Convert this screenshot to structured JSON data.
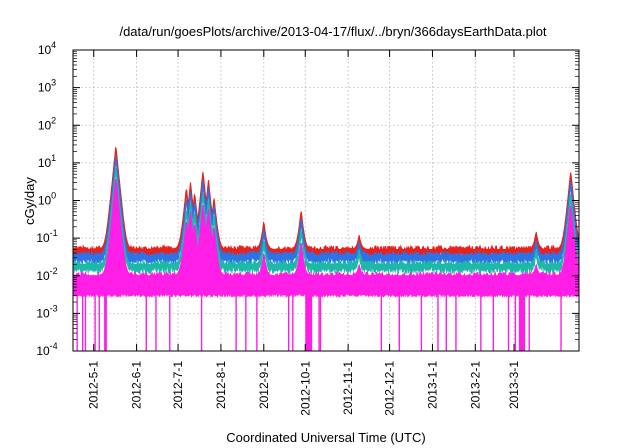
{
  "chart_data": {
    "type": "line",
    "title": "/data/run/goesPlots/archive/2013-04-17/flux/../bryn/366daysEarthData.plot",
    "xlabel": "Coordinated Universal Time (UTC)",
    "ylabel": "cGy/day",
    "yscale": "log",
    "ylim": [
      0.0001,
      10000
    ],
    "xlim": [
      "2012-04-16",
      "2013-04-17"
    ],
    "grid": true,
    "y_ticks": [
      {
        "base": "10",
        "exp": "-4",
        "value": 0.0001
      },
      {
        "base": "10",
        "exp": "-3",
        "value": 0.001
      },
      {
        "base": "10",
        "exp": "-2",
        "value": 0.01
      },
      {
        "base": "10",
        "exp": "-1",
        "value": 0.1
      },
      {
        "base": "10",
        "exp": "0",
        "value": 1
      },
      {
        "base": "10",
        "exp": "1",
        "value": 10
      },
      {
        "base": "10",
        "exp": "2",
        "value": 100
      },
      {
        "base": "10",
        "exp": "3",
        "value": 1000
      },
      {
        "base": "10",
        "exp": "4",
        "value": 10000
      }
    ],
    "x_ticks": [
      {
        "label": "2012-5-1",
        "date": "2012-05-01"
      },
      {
        "label": "2012-6-1",
        "date": "2012-06-01"
      },
      {
        "label": "2012-7-1",
        "date": "2012-07-01"
      },
      {
        "label": "2012-8-1",
        "date": "2012-08-01"
      },
      {
        "label": "2012-9-1",
        "date": "2012-09-01"
      },
      {
        "label": "2012-10-1",
        "date": "2012-10-01"
      },
      {
        "label": "2012-11-1",
        "date": "2012-11-01"
      },
      {
        "label": "2012-12-1",
        "date": "2012-12-01"
      },
      {
        "label": "2013-1-1",
        "date": "2013-01-01"
      },
      {
        "label": "2013-2-1",
        "date": "2013-02-01"
      },
      {
        "label": "2013-3-1",
        "date": "2013-03-01"
      }
    ],
    "series": [
      {
        "color": "#e8221b",
        "baseline": 0.05,
        "peaks": [
          {
            "date": "2012-05-17",
            "value": 28
          },
          {
            "date": "2012-07-07",
            "value": 2.2
          },
          {
            "date": "2012-07-10",
            "value": 3
          },
          {
            "date": "2012-07-13",
            "value": 1.6
          },
          {
            "date": "2012-07-19",
            "value": 6
          },
          {
            "date": "2012-07-23",
            "value": 3.5
          },
          {
            "date": "2012-07-27",
            "value": 1.2
          },
          {
            "date": "2012-09-01",
            "value": 0.28
          },
          {
            "date": "2012-09-28",
            "value": 0.55
          },
          {
            "date": "2012-11-09",
            "value": 0.12
          },
          {
            "date": "2013-03-17",
            "value": 0.15
          },
          {
            "date": "2013-04-11",
            "value": 6
          }
        ]
      },
      {
        "color": "#2e73e6",
        "baseline": 0.035,
        "peaks": [
          {
            "date": "2012-05-17",
            "value": 16
          },
          {
            "date": "2012-07-07",
            "value": 1.2
          },
          {
            "date": "2012-07-10",
            "value": 1.8
          },
          {
            "date": "2012-07-13",
            "value": 1.0
          },
          {
            "date": "2012-07-19",
            "value": 3.5
          },
          {
            "date": "2012-07-23",
            "value": 2.2
          },
          {
            "date": "2012-07-27",
            "value": 0.8
          },
          {
            "date": "2012-09-01",
            "value": 0.18
          },
          {
            "date": "2012-09-28",
            "value": 0.35
          },
          {
            "date": "2012-11-09",
            "value": 0.08
          },
          {
            "date": "2013-03-17",
            "value": 0.09
          },
          {
            "date": "2013-04-11",
            "value": 3.5
          }
        ]
      },
      {
        "color": "#1db8a8",
        "baseline": 0.02,
        "peaks": [
          {
            "date": "2012-05-17",
            "value": 8
          },
          {
            "date": "2012-07-07",
            "value": 0.6
          },
          {
            "date": "2012-07-10",
            "value": 0.9
          },
          {
            "date": "2012-07-13",
            "value": 0.5
          },
          {
            "date": "2012-07-19",
            "value": 1.6
          },
          {
            "date": "2012-07-23",
            "value": 1.1
          },
          {
            "date": "2012-07-27",
            "value": 0.4
          },
          {
            "date": "2012-09-01",
            "value": 0.09
          },
          {
            "date": "2012-09-28",
            "value": 0.18
          },
          {
            "date": "2012-11-09",
            "value": 0.05
          },
          {
            "date": "2013-03-17",
            "value": 0.05
          },
          {
            "date": "2013-04-11",
            "value": 1.6
          }
        ]
      },
      {
        "color": "#ff1ee6",
        "baseline": 0.01,
        "floor": 0.003,
        "peaks": [
          {
            "date": "2012-05-17",
            "value": 4
          },
          {
            "date": "2012-07-07",
            "value": 0.3
          },
          {
            "date": "2012-07-10",
            "value": 0.5
          },
          {
            "date": "2012-07-13",
            "value": 0.25
          },
          {
            "date": "2012-07-19",
            "value": 0.8
          },
          {
            "date": "2012-07-23",
            "value": 0.6
          },
          {
            "date": "2012-07-27",
            "value": 0.2
          },
          {
            "date": "2012-09-01",
            "value": 0.04
          },
          {
            "date": "2012-09-28",
            "value": 0.08
          },
          {
            "date": "2012-11-09",
            "value": 0.02
          },
          {
            "date": "2013-03-17",
            "value": 0.02
          },
          {
            "date": "2013-04-11",
            "value": 0.8
          }
        ],
        "dropout_dates": [
          "2012-04-19",
          "2012-04-23",
          "2012-04-25",
          "2012-05-02",
          "2012-05-05",
          "2012-05-09",
          "2012-05-10",
          "2012-06-08",
          "2012-06-15",
          "2012-06-25",
          "2012-07-18",
          "2012-08-12",
          "2012-08-19",
          "2012-08-27",
          "2012-09-19",
          "2012-09-22",
          "2012-10-11",
          "2012-10-12",
          "2012-11-25",
          "2012-12-08",
          "2012-12-24",
          "2013-01-05",
          "2013-01-11",
          "2013-01-18",
          "2013-02-05",
          "2013-02-14",
          "2013-02-25",
          "2013-03-02",
          "2013-03-05",
          "2013-03-08",
          "2013-03-12",
          "2013-04-04"
        ],
        "dropout_bands": [
          [
            "2012-10-01",
            "2012-10-06"
          ],
          [
            "2013-03-05",
            "2013-03-09"
          ]
        ]
      }
    ]
  }
}
